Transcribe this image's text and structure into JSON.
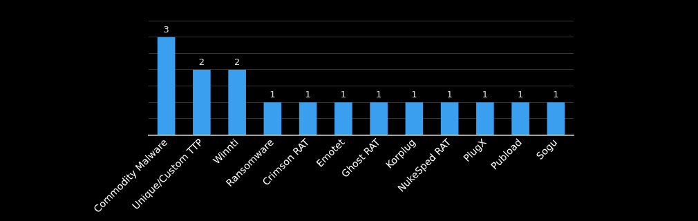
{
  "chart_data": {
    "type": "bar",
    "categories": [
      "Commodity Malware",
      "Unique/Custom TTP",
      "Winnti",
      "Ransomware",
      "Crimson RAT",
      "Emotet",
      "Ghost RAT",
      "Korplug",
      "NukeSped RAT",
      "PlugX",
      "Pubload",
      "Sogu"
    ],
    "values": [
      3,
      2,
      2,
      1,
      1,
      1,
      1,
      1,
      1,
      1,
      1,
      1
    ],
    "color": "#3b9ff0",
    "ylim": [
      0,
      3.5
    ],
    "yticks": [
      {
        "value": 0,
        "label": null
      },
      {
        "value": 0.5,
        "label": null
      },
      {
        "value": 1,
        "label": null
      },
      {
        "value": 1.5,
        "label": null
      },
      {
        "value": 2,
        "label": null
      },
      {
        "value": 2.5,
        "label": null
      },
      {
        "value": 3,
        "label": null
      },
      {
        "value": 3.5,
        "label": null
      }
    ],
    "grid": "y",
    "tick_labels": "x",
    "data_labels": true,
    "legend": false
  }
}
